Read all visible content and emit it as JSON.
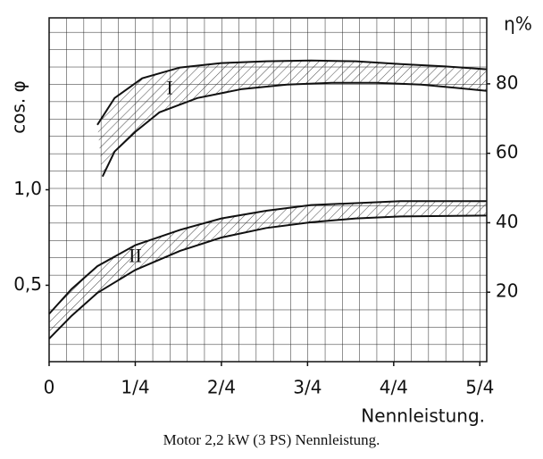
{
  "chart_data": {
    "type": "band",
    "caption": "Motor 2,2 kW (3 PS) Nennleistung.",
    "x_label": "Nennleistung.",
    "y_label": "cos. φ",
    "y2_label": "η%",
    "xlim": [
      0,
      1.27
    ],
    "ylim": [
      0.1,
      1.9
    ],
    "y2lim": [
      0,
      99
    ],
    "xticks": [
      {
        "value": 0,
        "label": "0"
      },
      {
        "value": 0.25,
        "label": "1/4"
      },
      {
        "value": 0.5,
        "label": "2/4"
      },
      {
        "value": 0.75,
        "label": "3/4"
      },
      {
        "value": 1,
        "label": "4/4"
      },
      {
        "value": 1.25,
        "label": "5/4"
      }
    ],
    "yticks": [
      {
        "value": 0.5,
        "label": "0,5"
      },
      {
        "value": 1,
        "label": "1,0"
      }
    ],
    "y2ticks": [
      20,
      40,
      60,
      80
    ],
    "grid": true,
    "color": "#111111",
    "bands": [
      {
        "name": "I",
        "axis": "y2",
        "x_upper": [
          0.14,
          0.19,
          0.27,
          0.38,
          0.5,
          0.63,
          0.76,
          0.89,
          1.02,
          1.15,
          1.27
        ],
        "upper": [
          68.2,
          75.9,
          81.6,
          84.7,
          86,
          86.5,
          86.7,
          86.5,
          85.7,
          85,
          84.2
        ],
        "x_lower": [
          0.155,
          0.19,
          0.25,
          0.32,
          0.43,
          0.56,
          0.69,
          0.82,
          0.95,
          1.08,
          1.27
        ],
        "lower": [
          53.3,
          60.5,
          66.2,
          71.8,
          75.9,
          78.5,
          79.8,
          80.3,
          80.3,
          79.8,
          78
        ]
      },
      {
        "name": "II",
        "axis": "y",
        "x_upper": [
          0,
          0.065,
          0.14,
          0.25,
          0.38,
          0.5,
          0.63,
          0.76,
          0.89,
          1.02,
          1.27
        ],
        "upper": [
          0.35,
          0.48,
          0.6,
          0.71,
          0.79,
          0.85,
          0.89,
          0.92,
          0.93,
          0.94,
          0.94
        ],
        "x_lower": [
          0,
          0.065,
          0.14,
          0.25,
          0.38,
          0.5,
          0.63,
          0.76,
          0.89,
          1.02,
          1.27
        ],
        "lower": [
          0.22,
          0.34,
          0.46,
          0.58,
          0.68,
          0.75,
          0.8,
          0.83,
          0.85,
          0.86,
          0.865
        ]
      }
    ]
  }
}
